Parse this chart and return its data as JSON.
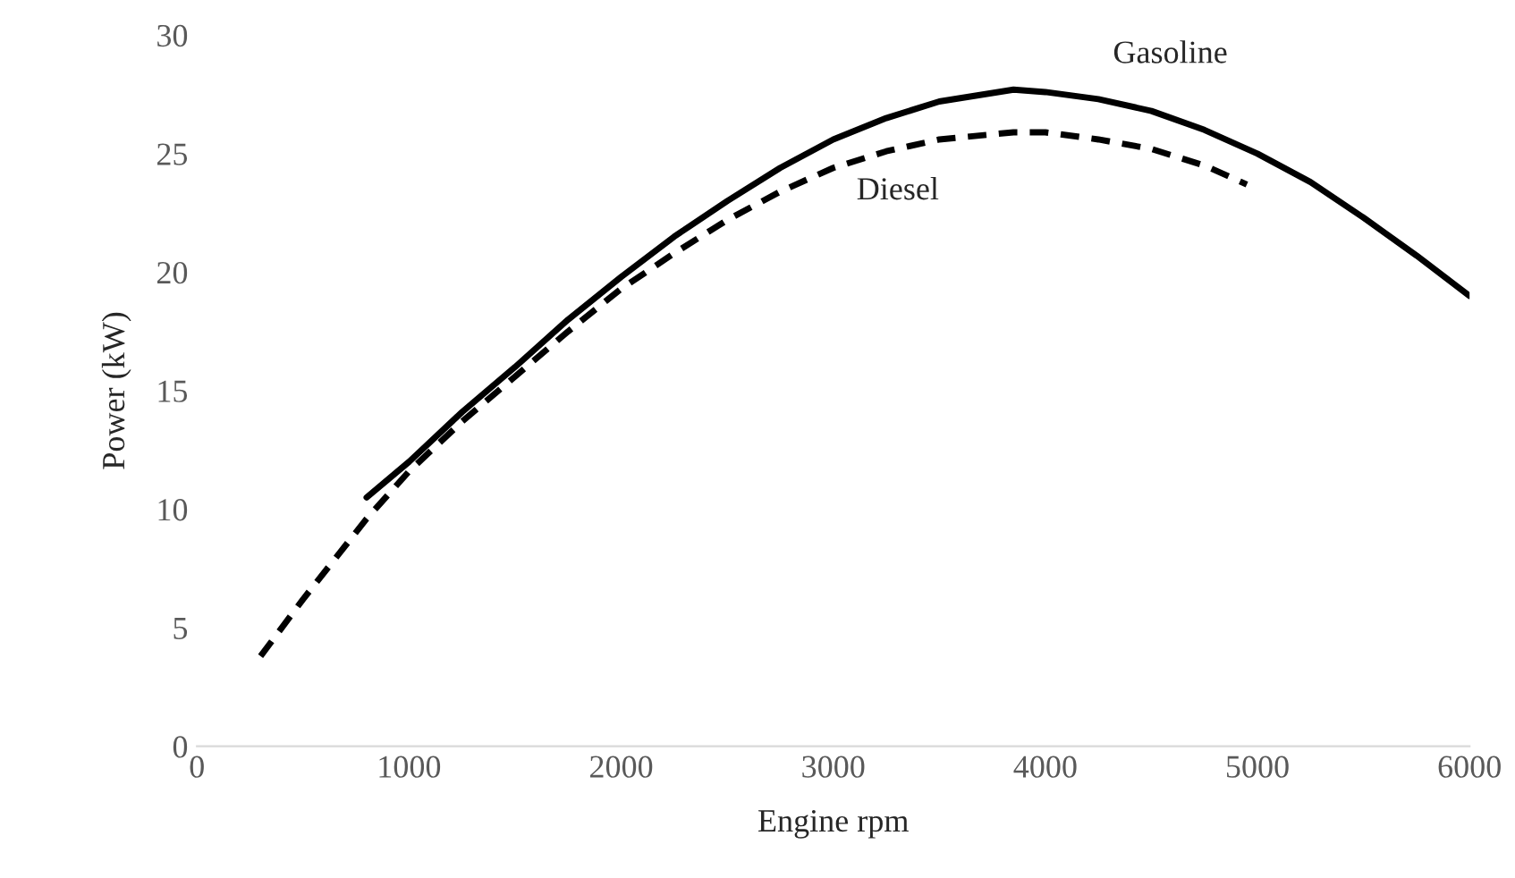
{
  "chart_data": {
    "type": "line",
    "xlabel": "Engine rpm",
    "ylabel": "Power (kW)",
    "xlim": [
      0,
      6000
    ],
    "xticks": [
      0,
      1000,
      2000,
      3000,
      4000,
      5000,
      6000
    ],
    "ylim": [
      0,
      30
    ],
    "yticks": [
      0,
      5,
      10,
      15,
      20,
      25,
      30
    ],
    "grid": false,
    "series": [
      {
        "name": "Gasoline",
        "color": "#000000",
        "line_style": "solid",
        "x": [
          800,
          1000,
          1250,
          1500,
          1750,
          2000,
          2250,
          2500,
          2750,
          3000,
          3250,
          3500,
          3850,
          4000,
          4250,
          4500,
          4750,
          5000,
          5250,
          5500,
          5750,
          6000
        ],
        "values": [
          10.5,
          12.0,
          14.1,
          16.0,
          18.0,
          19.8,
          21.5,
          23.0,
          24.4,
          25.6,
          26.5,
          27.2,
          27.7,
          27.6,
          27.3,
          26.8,
          26.0,
          25.0,
          23.8,
          22.3,
          20.7,
          19.0
        ]
      },
      {
        "name": "Diesel",
        "color": "#000000",
        "line_style": "dashed",
        "x": [
          300,
          500,
          800,
          1000,
          1250,
          1500,
          1750,
          2000,
          2250,
          2500,
          2750,
          3000,
          3250,
          3500,
          3850,
          4000,
          4250,
          4500,
          4750,
          4950
        ],
        "values": [
          3.8,
          6.2,
          9.6,
          11.6,
          13.7,
          15.6,
          17.5,
          19.3,
          20.8,
          22.2,
          23.4,
          24.4,
          25.1,
          25.6,
          25.9,
          25.9,
          25.6,
          25.2,
          24.5,
          23.7
        ]
      }
    ]
  }
}
